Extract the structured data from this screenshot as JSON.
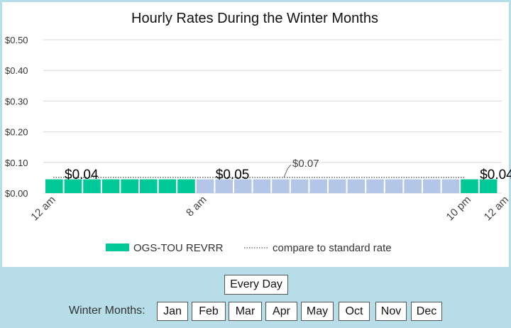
{
  "chart_data": {
    "type": "bar",
    "title": "Hourly Rates During the Winter Months",
    "ylim": [
      0,
      0.5
    ],
    "yticks": [
      "$0.50",
      "$0.40",
      "$0.30",
      "$0.20",
      "$0.10",
      "$0.00"
    ],
    "ytick_values": [
      0.5,
      0.4,
      0.3,
      0.2,
      0.1,
      0.0
    ],
    "x_ticks": [
      {
        "label": "12 am",
        "hour": 0
      },
      {
        "label": "8 am",
        "hour": 8
      },
      {
        "label": "10 pm",
        "hour": 22
      },
      {
        "label": "12 am",
        "hour": 24
      }
    ],
    "series": [
      {
        "name": "OGS-TOU REVRR",
        "values": [
          0.04,
          0.04,
          0.04,
          0.04,
          0.04,
          0.04,
          0.04,
          0.04,
          0.05,
          0.05,
          0.05,
          0.05,
          0.05,
          0.05,
          0.05,
          0.05,
          0.05,
          0.05,
          0.05,
          0.05,
          0.05,
          0.05,
          0.04,
          0.04
        ],
        "colors_by_period": {
          "offpeak": "#00c896",
          "peak": "#b4c6e7"
        }
      }
    ],
    "standard_rate": {
      "name": "compare to standard rate",
      "value": 0.065,
      "label": "$0.07"
    },
    "data_labels": [
      {
        "text": "$0.04",
        "hour": 0
      },
      {
        "text": "$0.05",
        "hour": 8
      },
      {
        "text": "$0.04",
        "hour": 22
      }
    ],
    "legend_position": "bottom",
    "grid": true
  },
  "controls": {
    "every_day": "Every Day",
    "months_label": "Winter Months:",
    "months": [
      "Jan",
      "Feb",
      "Mar",
      "Apr",
      "May",
      "Oct",
      "Nov",
      "Dec"
    ]
  }
}
